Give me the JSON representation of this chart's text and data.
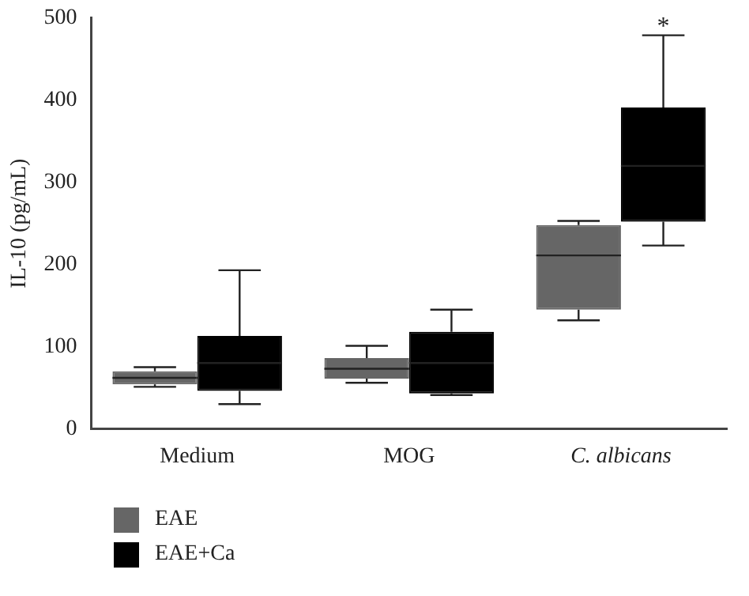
{
  "chart_data": {
    "type": "box",
    "ylabel": "IL-10 (pg/mL)",
    "categories": [
      "Medium",
      "MOG",
      "C. albicans"
    ],
    "ylim": [
      0,
      500
    ],
    "yticks": [
      0,
      100,
      200,
      300,
      400,
      500
    ],
    "grid": false,
    "legend": "bottom left",
    "series": [
      {
        "name": "EAE",
        "color": "#666666",
        "boxes": [
          {
            "low": 51,
            "q1": 54,
            "median": 62,
            "q3": 70,
            "high": 75
          },
          {
            "low": 56,
            "q1": 61,
            "median": 73,
            "q3": 86,
            "high": 101
          },
          {
            "low": 132,
            "q1": 145,
            "median": 211,
            "q3": 248,
            "high": 253
          }
        ]
      },
      {
        "name": "EAE+Ca",
        "color": "#000000",
        "boxes": [
          {
            "low": 30,
            "q1": 46,
            "median": 80,
            "q3": 113,
            "high": 193
          },
          {
            "low": 41,
            "q1": 43,
            "median": 80,
            "q3": 118,
            "high": 145
          },
          {
            "low": 223,
            "q1": 252,
            "median": 320,
            "q3": 391,
            "high": 479
          }
        ]
      }
    ],
    "annotations": [
      "*"
    ]
  }
}
